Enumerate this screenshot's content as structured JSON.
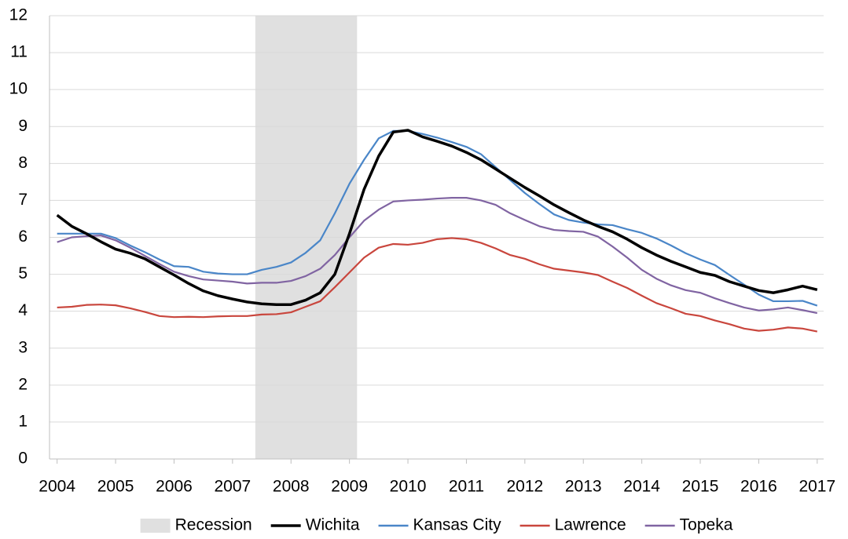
{
  "chart_data": {
    "type": "line",
    "x": [
      2004,
      2004.25,
      2004.5,
      2004.75,
      2005,
      2005.25,
      2005.5,
      2005.75,
      2006,
      2006.25,
      2006.5,
      2006.75,
      2007,
      2007.25,
      2007.5,
      2007.75,
      2008,
      2008.25,
      2008.5,
      2008.75,
      2009,
      2009.25,
      2009.5,
      2009.75,
      2010,
      2010.25,
      2010.5,
      2010.75,
      2011,
      2011.25,
      2011.5,
      2011.75,
      2012,
      2012.25,
      2012.5,
      2012.75,
      2013,
      2013.25,
      2013.5,
      2013.75,
      2014,
      2014.25,
      2014.5,
      2014.75,
      2015,
      2015.25,
      2015.5,
      2015.75,
      2016,
      2016.25,
      2016.5,
      2016.75,
      2017
    ],
    "series": [
      {
        "name": "Wichita",
        "color": "#000000",
        "values": [
          6.6,
          6.3,
          6.1,
          5.88,
          5.68,
          5.57,
          5.42,
          5.2,
          4.98,
          4.75,
          4.55,
          4.42,
          4.33,
          4.25,
          4.2,
          4.18,
          4.18,
          4.3,
          4.5,
          5.0,
          6.1,
          7.3,
          8.2,
          8.85,
          8.9,
          8.72,
          8.6,
          8.47,
          8.3,
          8.1,
          7.85,
          7.6,
          7.35,
          7.12,
          6.88,
          6.67,
          6.47,
          6.3,
          6.15,
          5.95,
          5.72,
          5.52,
          5.35,
          5.2,
          5.05,
          4.97,
          4.8,
          4.68,
          4.56,
          4.5,
          4.58,
          4.68,
          4.58
        ]
      },
      {
        "name": "Kansas City",
        "color": "#4a86c8",
        "values": [
          6.1,
          6.1,
          6.1,
          6.1,
          5.98,
          5.78,
          5.6,
          5.4,
          5.22,
          5.2,
          5.07,
          5.02,
          5.0,
          5.0,
          5.12,
          5.2,
          5.32,
          5.58,
          5.92,
          6.65,
          7.45,
          8.1,
          8.68,
          8.88,
          8.88,
          8.8,
          8.7,
          8.58,
          8.45,
          8.25,
          7.9,
          7.55,
          7.2,
          6.9,
          6.62,
          6.47,
          6.4,
          6.35,
          6.33,
          6.22,
          6.12,
          5.97,
          5.78,
          5.57,
          5.4,
          5.25,
          4.98,
          4.72,
          4.45,
          4.27,
          4.27,
          4.28,
          4.15
        ]
      },
      {
        "name": "Lawrence",
        "color": "#c9463d",
        "values": [
          4.1,
          4.12,
          4.17,
          4.18,
          4.16,
          4.08,
          3.98,
          3.87,
          3.84,
          3.85,
          3.84,
          3.86,
          3.87,
          3.87,
          3.91,
          3.92,
          3.97,
          4.12,
          4.27,
          4.65,
          5.05,
          5.45,
          5.72,
          5.82,
          5.8,
          5.85,
          5.95,
          5.98,
          5.95,
          5.85,
          5.7,
          5.52,
          5.42,
          5.27,
          5.15,
          5.1,
          5.05,
          4.98,
          4.8,
          4.63,
          4.42,
          4.22,
          4.08,
          3.93,
          3.87,
          3.75,
          3.65,
          3.53,
          3.47,
          3.5,
          3.56,
          3.53,
          3.45
        ]
      },
      {
        "name": "Topeka",
        "color": "#8064a2",
        "values": [
          5.87,
          6.0,
          6.03,
          6.05,
          5.92,
          5.72,
          5.5,
          5.28,
          5.07,
          4.95,
          4.86,
          4.83,
          4.8,
          4.75,
          4.77,
          4.77,
          4.82,
          4.95,
          5.15,
          5.52,
          6.0,
          6.45,
          6.75,
          6.97,
          7.0,
          7.02,
          7.05,
          7.07,
          7.07,
          7.0,
          6.88,
          6.65,
          6.47,
          6.3,
          6.2,
          6.17,
          6.15,
          6.02,
          5.75,
          5.45,
          5.12,
          4.88,
          4.7,
          4.57,
          4.5,
          4.35,
          4.22,
          4.1,
          4.02,
          4.05,
          4.1,
          4.03,
          3.95
        ]
      }
    ],
    "recession": {
      "name": "Recession",
      "start": 2007.39,
      "end": 2009.13,
      "color": "#e0e0e0"
    },
    "xlim": [
      2003.87,
      2017.11
    ],
    "xticks": [
      2004,
      2005,
      2006,
      2007,
      2008,
      2009,
      2010,
      2011,
      2012,
      2013,
      2014,
      2015,
      2016,
      2017
    ],
    "ylim": [
      0,
      12
    ],
    "yticks": [
      0,
      1,
      2,
      3,
      4,
      5,
      6,
      7,
      8,
      9,
      10,
      11,
      12
    ],
    "grid": true,
    "legend": "bottom"
  }
}
